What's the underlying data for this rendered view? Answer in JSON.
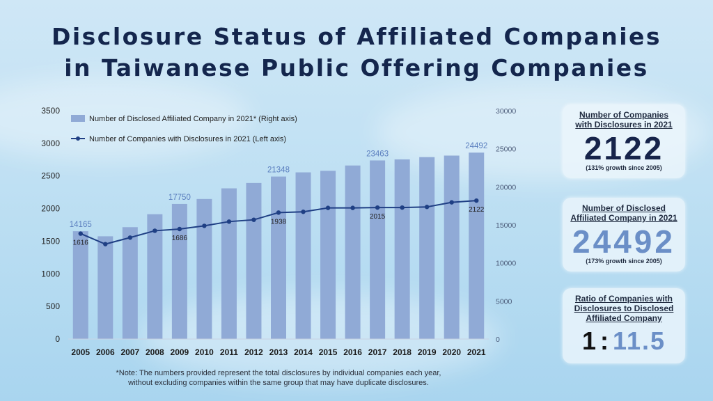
{
  "title_line1": "Disclosure Status of  Affiliated Companies",
  "title_line2": "in Taiwanese Public Offering Companies",
  "note_line1": "*Note:  The numbers provided represent the total disclosures by individual  companies each year,",
  "note_line2": "without excluding  companies within the same group that may have duplicate disclosures.",
  "cards": {
    "companies": {
      "label1": "Number of Companies",
      "label2": "with Disclosures in 2021",
      "value": "2122",
      "sub": "(131% growth since 2005)"
    },
    "affiliated": {
      "label1": "Number of Disclosed",
      "label2": "Affiliated Company  in 2021",
      "value": "24492",
      "sub": "(173% growth since 2005)"
    },
    "ratio": {
      "label1": "Ratio of Companies with",
      "label2": "Disclosures to Disclosed",
      "label3": "Affiliated Company",
      "left": "1",
      "sep": ":",
      "right": "11.5"
    }
  },
  "colors": {
    "bar": "#90aad6",
    "line": "#1f3f84",
    "title": "#14264d",
    "accent": "#6b8fc7"
  },
  "chart_data": {
    "type": "bar+line",
    "categories": [
      "2005",
      "2006",
      "2007",
      "2008",
      "2009",
      "2010",
      "2011",
      "2012",
      "2013",
      "2014",
      "2015",
      "2016",
      "2017",
      "2018",
      "2019",
      "2020",
      "2021"
    ],
    "series": [
      {
        "name": "Number of Disclosed Affiliated Company in 2021* (Right axis)",
        "type": "bar",
        "axis": "right",
        "values": [
          14165,
          13500,
          14700,
          16400,
          17750,
          18400,
          19800,
          20500,
          21348,
          21900,
          22100,
          22800,
          23463,
          23600,
          23900,
          24100,
          24492
        ]
      },
      {
        "name": "Number of Companies with Disclosures in 2021 (Left axis)",
        "type": "line",
        "axis": "left",
        "values": [
          1616,
          1455,
          1555,
          1660,
          1686,
          1735,
          1800,
          1828,
          1938,
          1950,
          2010,
          2010,
          2015,
          2015,
          2025,
          2095,
          2122
        ]
      }
    ],
    "bar_labels": [
      {
        "index": 0,
        "text": "14165"
      },
      {
        "index": 4,
        "text": "17750"
      },
      {
        "index": 8,
        "text": "21348"
      },
      {
        "index": 12,
        "text": "23463"
      },
      {
        "index": 16,
        "text": "24492"
      }
    ],
    "line_labels": [
      {
        "index": 0,
        "text": "1616"
      },
      {
        "index": 4,
        "text": "1686"
      },
      {
        "index": 8,
        "text": "1938"
      },
      {
        "index": 12,
        "text": "2015"
      },
      {
        "index": 16,
        "text": "2122"
      }
    ],
    "y_left": {
      "ticks": [
        "0",
        "500",
        "1000",
        "1500",
        "2000",
        "2500",
        "3000",
        "3500"
      ],
      "min": 0,
      "max": 3500
    },
    "y_right": {
      "ticks": [
        "0",
        "5000",
        "10000",
        "15000",
        "20000",
        "25000",
        "30000"
      ],
      "min": 0,
      "max": 30000
    },
    "legend_position": "top-left",
    "grid": false
  }
}
